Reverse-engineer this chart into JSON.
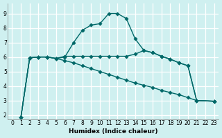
{
  "xlabel": "Humidex (Indice chaleur)",
  "bg_color": "#cff0f0",
  "grid_color": "#ffffff",
  "line_color": "#006868",
  "xlim": [
    -0.5,
    23.5
  ],
  "ylim": [
    1.7,
    9.7
  ],
  "xticks": [
    0,
    1,
    2,
    3,
    4,
    5,
    6,
    7,
    8,
    9,
    10,
    11,
    12,
    13,
    14,
    15,
    16,
    17,
    18,
    19,
    20,
    21,
    22,
    23
  ],
  "yticks": [
    2,
    3,
    4,
    5,
    6,
    7,
    8,
    9
  ],
  "curve1_x": [
    1,
    2,
    3,
    4,
    5,
    6,
    7,
    8,
    9,
    10,
    11,
    12,
    13,
    14,
    15,
    16,
    17,
    18,
    19,
    20,
    21,
    23
  ],
  "curve1_y": [
    1.85,
    5.95,
    6.0,
    6.0,
    5.9,
    6.0,
    7.0,
    7.85,
    8.2,
    8.3,
    9.0,
    9.0,
    8.65,
    7.25,
    6.45,
    6.3,
    6.05,
    5.85,
    5.6,
    5.4,
    3.0,
    2.95
  ],
  "curve2_x": [
    1,
    2,
    3,
    4,
    5,
    6,
    7,
    8,
    9,
    10,
    11,
    12,
    13,
    14,
    15,
    16,
    17,
    18,
    19,
    20,
    21,
    23
  ],
  "curve2_y": [
    1.85,
    5.95,
    6.0,
    6.0,
    5.9,
    6.05,
    6.05,
    6.05,
    6.05,
    6.05,
    6.05,
    6.05,
    6.05,
    6.2,
    6.45,
    6.3,
    6.05,
    5.85,
    5.6,
    5.4,
    3.0,
    2.95
  ],
  "curve3_x": [
    1,
    2,
    3,
    4,
    5,
    6,
    7,
    8,
    9,
    10,
    11,
    12,
    13,
    14,
    15,
    16,
    17,
    18,
    19,
    20,
    21,
    23
  ],
  "curve3_y": [
    1.85,
    5.95,
    6.0,
    6.0,
    5.9,
    5.75,
    5.6,
    5.4,
    5.2,
    5.0,
    4.8,
    4.6,
    4.4,
    4.2,
    4.05,
    3.9,
    3.7,
    3.55,
    3.4,
    3.2,
    3.0,
    2.95
  ]
}
